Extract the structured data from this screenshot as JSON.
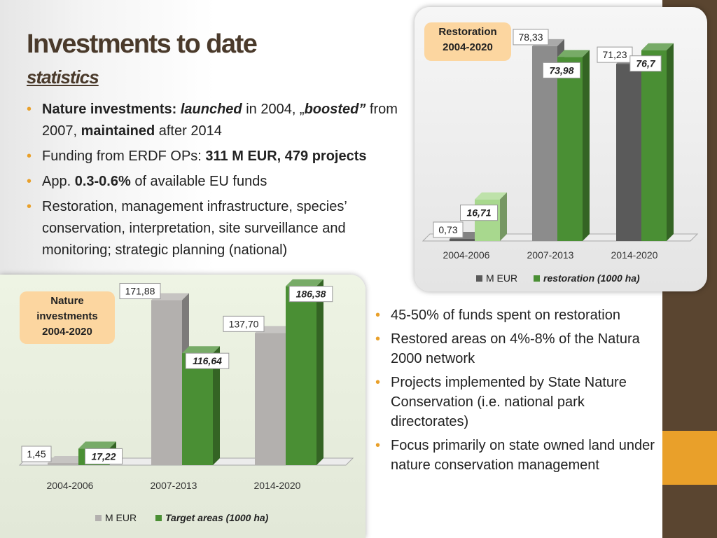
{
  "title": "Investments to date",
  "subtitle": "statistics",
  "bullets_top": [
    {
      "parts": [
        {
          "t": "Nature investments: ",
          "b": true
        },
        {
          "t": "launched",
          "b": true,
          "i": true
        },
        {
          "t": " in 2004, „"
        },
        {
          "t": "boosted”",
          "b": true,
          "i": true
        },
        {
          "t": " from 2007, "
        },
        {
          "t": "maintained",
          "b": true
        },
        {
          "t": " after 2014"
        }
      ]
    },
    {
      "parts": [
        {
          "t": "Funding from ERDF OPs: "
        },
        {
          "t": "311 M EUR, 479 projects",
          "b": true
        }
      ]
    },
    {
      "parts": [
        {
          "t": "App. "
        },
        {
          "t": "0.3-0.6%",
          "b": true
        },
        {
          "t": " of available EU funds"
        }
      ]
    },
    {
      "parts": [
        {
          "t": "Restoration, management infrastructure, species’ conservation, interpretation, site surveillance and monitoring; strategic planning (national)"
        }
      ]
    }
  ],
  "bullets_bottom": [
    "45-50% of funds spent on restoration",
    "Restored areas on 4%-8% of the Natura 2000 network",
    "Projects implemented by State Nature Conservation (i.e. national park directorates)",
    "Focus primarily on state owned land under nature conservation management"
  ],
  "badges": {
    "restoration": [
      "Restoration",
      "2004-2020"
    ],
    "nature": [
      "Nature",
      "investments",
      "2004-2020"
    ]
  },
  "colors": {
    "accent": "#e9a02a",
    "brown": "#5a4530",
    "green": "#4a8f34",
    "light_green": "#a8d88e",
    "dark_gray": "#5a5a5a",
    "gray": "#8c8c8c",
    "light_gray": "#b3b0ae"
  },
  "chart_data": [
    {
      "id": "restoration",
      "type": "bar",
      "title": "",
      "categories": [
        "2004-2006",
        "2007-2013",
        "2014-2020"
      ],
      "series": [
        {
          "name": "M EUR",
          "values": [
            0.73,
            78.33,
            71.23
          ],
          "labels": [
            "0,73",
            "78,33",
            "71,23"
          ],
          "colors": [
            "#5a5a5a",
            "#8c8c8c",
            "#5a5a5a"
          ]
        },
        {
          "name": "restoration (1000 ha)",
          "values": [
            16.71,
            73.98,
            76.7
          ],
          "labels": [
            "16,71",
            "73,98",
            "76,7"
          ],
          "colors": [
            "#a8d88e",
            "#4a8f34",
            "#4a8f34"
          ]
        }
      ],
      "legend_position": "bottom",
      "grid": false
    },
    {
      "id": "nature",
      "type": "bar",
      "title": "",
      "categories": [
        "2004-2006",
        "2007-2013",
        "2014-2020"
      ],
      "series": [
        {
          "name": "M EUR",
          "values": [
            1.45,
            171.88,
            137.7
          ],
          "labels": [
            "1,45",
            "171,88",
            "137,70"
          ],
          "colors": [
            "#b3b0ae",
            "#b3b0ae",
            "#b3b0ae"
          ]
        },
        {
          "name": "Target areas (1000 ha)",
          "values": [
            17.22,
            116.64,
            186.38
          ],
          "labels": [
            "17,22",
            "116,64",
            "186,38"
          ],
          "colors": [
            "#4a8f34",
            "#4a8f34",
            "#4a8f34"
          ]
        }
      ],
      "legend_position": "bottom",
      "grid": false
    }
  ]
}
